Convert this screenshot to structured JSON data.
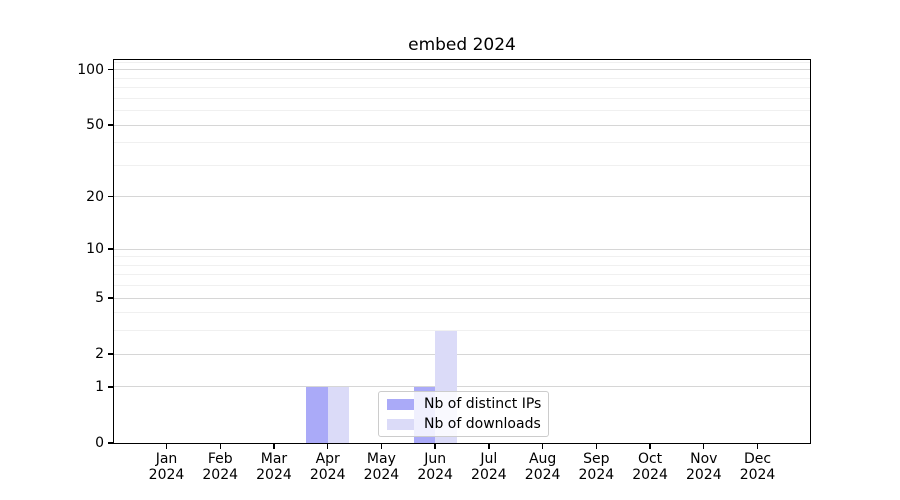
{
  "title": "embed 2024",
  "colors": {
    "bar_distinct_ips": "#aaaaf8",
    "bar_downloads": "#dbdbf8",
    "grid_major": "rgba(0,0,0,0.16)",
    "grid_minor": "rgba(0,0,0,0.06)",
    "spine": "#000000",
    "text": "#000000",
    "legend_border": "#cccccc",
    "legend_background": "rgba(255,255,255,0.82)"
  },
  "chart_data": {
    "type": "bar",
    "title": "embed 2024",
    "categories": [
      {
        "month": "Jan",
        "year": "2024"
      },
      {
        "month": "Feb",
        "year": "2024"
      },
      {
        "month": "Mar",
        "year": "2024"
      },
      {
        "month": "Apr",
        "year": "2024"
      },
      {
        "month": "May",
        "year": "2024"
      },
      {
        "month": "Jun",
        "year": "2024"
      },
      {
        "month": "Jul",
        "year": "2024"
      },
      {
        "month": "Aug",
        "year": "2024"
      },
      {
        "month": "Sep",
        "year": "2024"
      },
      {
        "month": "Oct",
        "year": "2024"
      },
      {
        "month": "Nov",
        "year": "2024"
      },
      {
        "month": "Dec",
        "year": "2024"
      }
    ],
    "series": [
      {
        "name": "Nb of distinct IPs",
        "color": "#aaaaf8",
        "values": [
          0,
          0,
          0,
          1,
          0,
          1,
          0,
          0,
          0,
          0,
          0,
          0
        ]
      },
      {
        "name": "Nb of downloads",
        "color": "#dbdbf8",
        "values": [
          0,
          0,
          0,
          1,
          0,
          3,
          0,
          0,
          0,
          0,
          0,
          0
        ]
      }
    ],
    "xlabel": "",
    "ylabel": "",
    "y_scale": "log1p",
    "y_major_ticks": [
      0,
      1,
      2,
      5,
      10,
      20,
      50,
      100
    ],
    "y_minor_ticks": [
      3,
      4,
      6,
      7,
      8,
      9,
      30,
      40,
      60,
      70,
      80,
      90,
      110
    ],
    "ylim": [
      0,
      113
    ],
    "grid": "on",
    "legend_position": "inside lower center"
  }
}
